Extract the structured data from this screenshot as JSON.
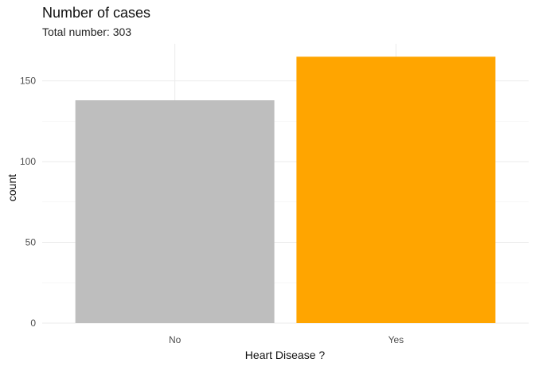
{
  "chart_data": {
    "type": "bar",
    "title": "Number of cases",
    "subtitle": "Total number: 303",
    "xlabel": "Heart Disease ?",
    "ylabel": "count",
    "categories": [
      "No",
      "Yes"
    ],
    "values": [
      138,
      165
    ],
    "colors": [
      "#bebebe",
      "#ffa500"
    ],
    "ylim": [
      0,
      173
    ],
    "y_ticks": [
      0,
      50,
      100,
      150
    ],
    "y_tick_labels": [
      "0",
      "50",
      "100",
      "150"
    ],
    "grid": true,
    "legend": "none"
  }
}
